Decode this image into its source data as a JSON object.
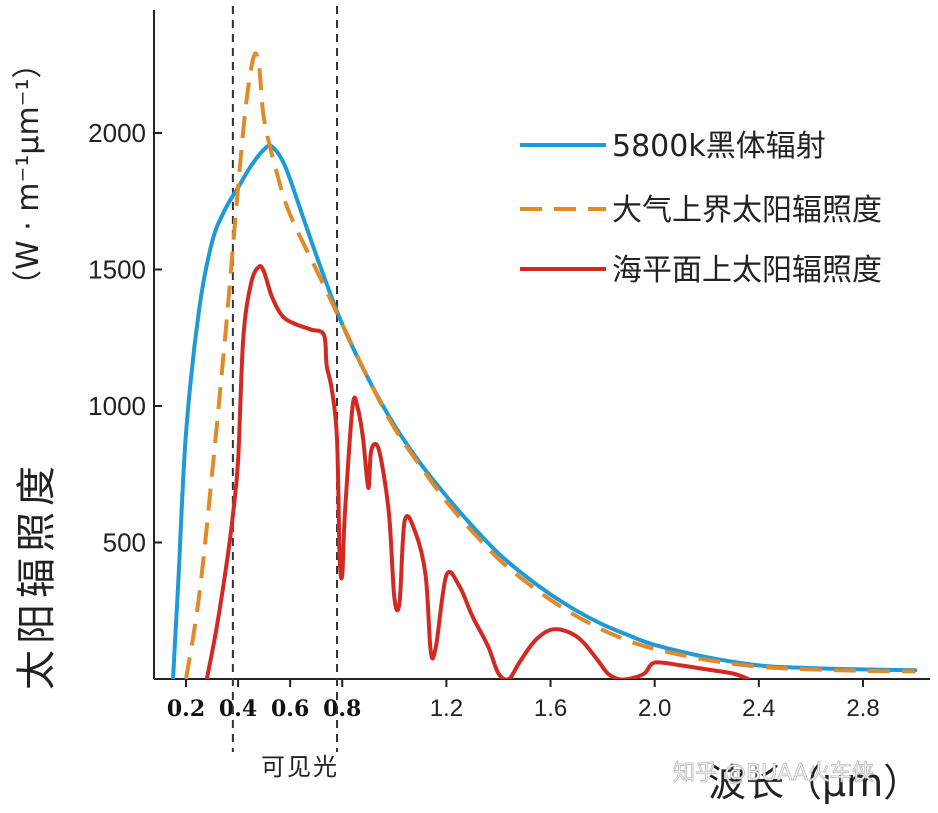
{
  "chart_data": {
    "type": "line",
    "ylabel": "太阳辐照度",
    "yunit": "（W · m⁻¹μm⁻¹）",
    "xlabel": "波长（μm）",
    "xlim": [
      0.05,
      3.0
    ],
    "ylim": [
      0,
      2450
    ],
    "yticks": [
      {
        "value": 500,
        "label": "500"
      },
      {
        "value": 1000,
        "label": "1000"
      },
      {
        "value": 1500,
        "label": "1500"
      },
      {
        "value": 2000,
        "label": "2000"
      }
    ],
    "xticks": [
      {
        "value": 0.2,
        "label": "0.2",
        "bold": true
      },
      {
        "value": 0.4,
        "label": "0.4",
        "bold": true
      },
      {
        "value": 0.6,
        "label": "0.6",
        "bold": true
      },
      {
        "value": 0.8,
        "label": "0.8",
        "bold": true
      },
      {
        "value": 1.2,
        "label": "1.2",
        "bold": false
      },
      {
        "value": 1.6,
        "label": "1.6",
        "bold": false
      },
      {
        "value": 2.0,
        "label": "2.0",
        "bold": false
      },
      {
        "value": 2.4,
        "label": "2.4",
        "bold": false
      },
      {
        "value": 2.8,
        "label": "2.8",
        "bold": false
      }
    ],
    "visible_band": {
      "from": 0.38,
      "to": 0.78,
      "label": "可见光"
    },
    "grid": false,
    "legend_position": "top-right",
    "series": [
      {
        "name": "5800k黑体辐射",
        "color": "#1f9ad6",
        "style": "solid",
        "points": [
          [
            0.15,
            0
          ],
          [
            0.17,
            350
          ],
          [
            0.2,
            900
          ],
          [
            0.25,
            1350
          ],
          [
            0.3,
            1600
          ],
          [
            0.35,
            1720
          ],
          [
            0.4,
            1800
          ],
          [
            0.45,
            1880
          ],
          [
            0.5,
            1940
          ],
          [
            0.53,
            1950
          ],
          [
            0.58,
            1880
          ],
          [
            0.65,
            1690
          ],
          [
            0.72,
            1500
          ],
          [
            0.8,
            1300
          ],
          [
            0.9,
            1100
          ],
          [
            1.0,
            930
          ],
          [
            1.1,
            790
          ],
          [
            1.2,
            670
          ],
          [
            1.3,
            560
          ],
          [
            1.4,
            460
          ],
          [
            1.5,
            380
          ],
          [
            1.6,
            310
          ],
          [
            1.7,
            250
          ],
          [
            1.8,
            200
          ],
          [
            1.9,
            160
          ],
          [
            2.0,
            125
          ],
          [
            2.2,
            80
          ],
          [
            2.4,
            50
          ],
          [
            2.6,
            40
          ],
          [
            2.8,
            35
          ],
          [
            3.0,
            32
          ]
        ]
      },
      {
        "name": "大气上界太阳辐照度",
        "color": "#e08a2a",
        "style": "dashed",
        "points": [
          [
            0.2,
            0
          ],
          [
            0.25,
            300
          ],
          [
            0.3,
            750
          ],
          [
            0.35,
            1250
          ],
          [
            0.4,
            1800
          ],
          [
            0.43,
            2100
          ],
          [
            0.46,
            2280
          ],
          [
            0.48,
            2250
          ],
          [
            0.5,
            2050
          ],
          [
            0.55,
            1850
          ],
          [
            0.6,
            1700
          ],
          [
            0.7,
            1500
          ],
          [
            0.8,
            1300
          ],
          [
            0.9,
            1100
          ],
          [
            1.0,
            920
          ],
          [
            1.1,
            780
          ],
          [
            1.2,
            650
          ],
          [
            1.3,
            540
          ],
          [
            1.4,
            440
          ],
          [
            1.5,
            360
          ],
          [
            1.6,
            290
          ],
          [
            1.7,
            230
          ],
          [
            1.8,
            180
          ],
          [
            1.9,
            140
          ],
          [
            2.0,
            110
          ],
          [
            2.2,
            70
          ],
          [
            2.4,
            45
          ],
          [
            2.6,
            35
          ],
          [
            2.8,
            30
          ],
          [
            3.0,
            28
          ]
        ]
      },
      {
        "name": "海平面上太阳辐照度",
        "color": "#d22a22",
        "style": "solid",
        "points": [
          [
            0.28,
            0
          ],
          [
            0.32,
            200
          ],
          [
            0.36,
            450
          ],
          [
            0.38,
            600
          ],
          [
            0.4,
            800
          ],
          [
            0.42,
            1250
          ],
          [
            0.45,
            1450
          ],
          [
            0.48,
            1510
          ],
          [
            0.5,
            1490
          ],
          [
            0.53,
            1400
          ],
          [
            0.57,
            1330
          ],
          [
            0.62,
            1300
          ],
          [
            0.68,
            1280
          ],
          [
            0.73,
            1260
          ],
          [
            0.74,
            1150
          ],
          [
            0.76,
            1060
          ],
          [
            0.78,
            880
          ],
          [
            0.79,
            450
          ],
          [
            0.8,
            380
          ],
          [
            0.81,
            600
          ],
          [
            0.84,
            1000
          ],
          [
            0.86,
            990
          ],
          [
            0.88,
            880
          ],
          [
            0.9,
            700
          ],
          [
            0.91,
            830
          ],
          [
            0.93,
            860
          ],
          [
            0.95,
            800
          ],
          [
            0.98,
            600
          ],
          [
            1.0,
            300
          ],
          [
            1.02,
            280
          ],
          [
            1.04,
            580
          ],
          [
            1.08,
            540
          ],
          [
            1.12,
            380
          ],
          [
            1.14,
            100
          ],
          [
            1.16,
            120
          ],
          [
            1.2,
            380
          ],
          [
            1.25,
            340
          ],
          [
            1.3,
            230
          ],
          [
            1.36,
            120
          ],
          [
            1.4,
            20
          ],
          [
            1.44,
            0
          ],
          [
            1.48,
            60
          ],
          [
            1.54,
            140
          ],
          [
            1.6,
            180
          ],
          [
            1.66,
            175
          ],
          [
            1.72,
            140
          ],
          [
            1.78,
            70
          ],
          [
            1.82,
            20
          ],
          [
            1.86,
            0
          ],
          [
            1.9,
            0
          ],
          [
            1.96,
            20
          ],
          [
            2.0,
            60
          ],
          [
            2.1,
            50
          ],
          [
            2.2,
            35
          ],
          [
            2.3,
            20
          ],
          [
            2.36,
            0
          ]
        ]
      }
    ]
  },
  "watermark": "知乎 @BUAA火车侠"
}
